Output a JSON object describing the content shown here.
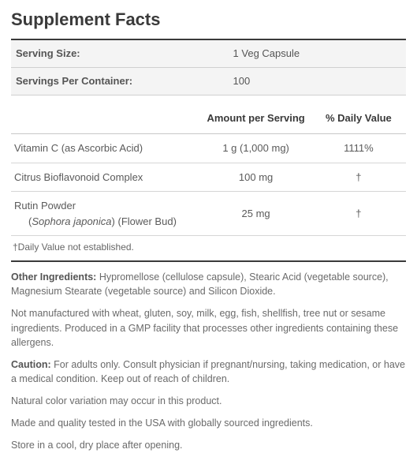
{
  "title": "Supplement Facts",
  "info": {
    "serving_size_label": "Serving Size:",
    "serving_size_value": "1 Veg Capsule",
    "servings_label": "Servings Per Container:",
    "servings_value": "100"
  },
  "columns": {
    "amount": "Amount per Serving",
    "dv": "% Daily Value"
  },
  "rows": [
    {
      "name_html": "Vitamin C (as Ascorbic Acid)",
      "amount": "1 g (1,000 mg)",
      "dv": "1111%"
    },
    {
      "name_html": "Citrus Bioflavonoid Complex",
      "amount": "100 mg",
      "dv": "†"
    },
    {
      "name_html": "Rutin Powder<br><span class=\"indent\">(<em class=\"sci\">Sophora japonica</em>) (Flower Bud)</span>",
      "amount": "25 mg",
      "dv": "†"
    }
  ],
  "footnote": "†Daily Value not established.",
  "notes": [
    "<strong>Other Ingredients:</strong> Hypromellose (cellulose capsule), Stearic Acid (vegetable source), Magnesium Stearate (vegetable source) and Silicon Dioxide.",
    "Not manufactured with wheat, gluten, soy, milk, egg, fish, shellfish, tree nut or sesame ingredients. Produced in a GMP facility that processes other ingredients containing these allergens.",
    "<strong>Caution:</strong> For adults only. Consult physician if pregnant/nursing, taking medication, or have a medical condition. Keep out of reach of children.",
    "Natural color variation may occur in this product.",
    "Made and quality tested in the USA with globally sourced ingredients.",
    "Store in a cool, dry place after opening."
  ],
  "colors": {
    "text": "#4a4a4a",
    "heading": "#3a3a3a",
    "row_bg": "#f4f4f4",
    "border": "#c8c8c8"
  }
}
